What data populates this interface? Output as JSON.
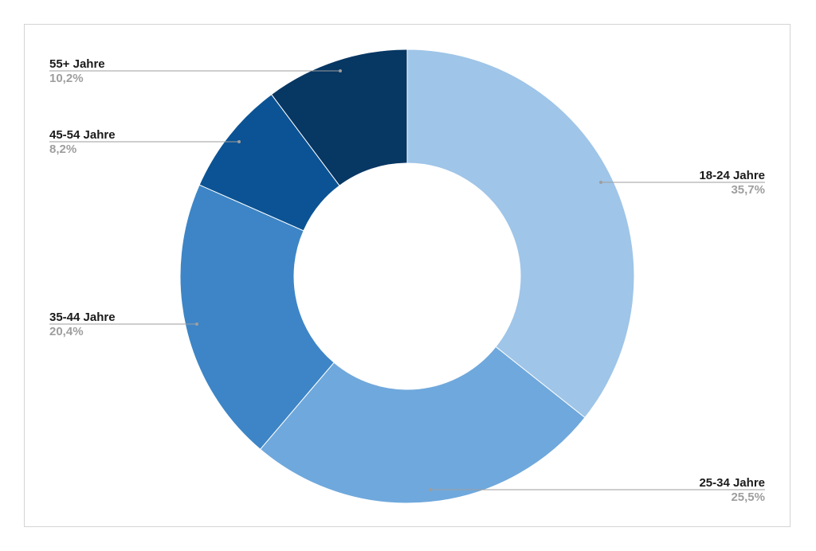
{
  "chart_data": {
    "type": "pie",
    "donut": true,
    "categories": [
      "18-24 Jahre",
      "25-34 Jahre",
      "35-44 Jahre",
      "45-54 Jahre",
      "55+ Jahre"
    ],
    "values": [
      35.7,
      25.5,
      20.4,
      8.2,
      10.2
    ],
    "value_labels": [
      "35,7%",
      "25,5%",
      "20,4%",
      "8,2%",
      "10,2%"
    ],
    "colors": [
      "#9fc5e8",
      "#6fa8dc",
      "#3d85c6",
      "#0b5394",
      "#073763"
    ],
    "legend": "none"
  }
}
